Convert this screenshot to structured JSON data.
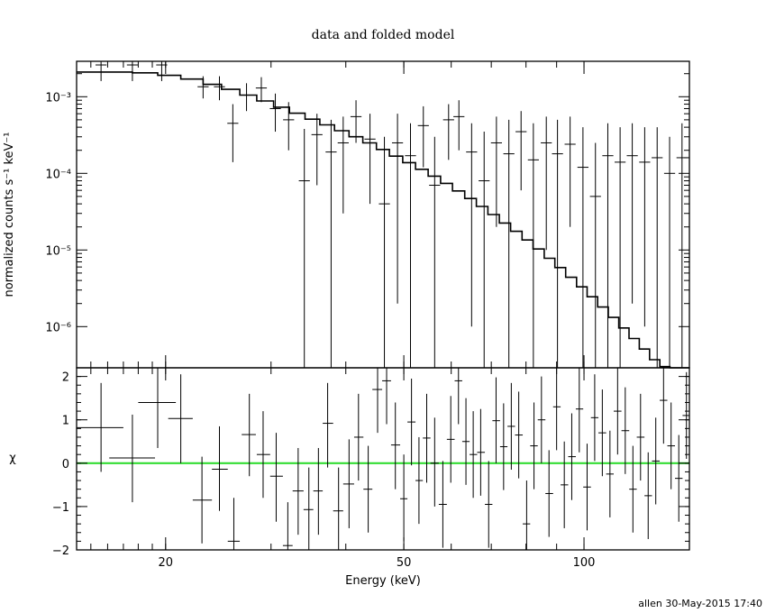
{
  "footer": "allen 30-May-2015 17:40",
  "colors": {
    "axes": "#000000",
    "zero_line": "#33dd33",
    "background": "#ffffff"
  },
  "chart_data": [
    {
      "type": "scatter",
      "panel": "top",
      "title": "data and folded model",
      "xlabel": "",
      "ylabel": "normalized counts s⁻¹ keV⁻¹",
      "xscale": "log",
      "yscale": "log",
      "xlim": [
        14.2,
        150
      ],
      "ylim": [
        2.9e-07,
        0.0029
      ],
      "yticks": [
        1e-06,
        1e-05,
        0.0001,
        0.001
      ],
      "ytick_labels": [
        "10⁻⁶",
        "10⁻⁵",
        "10⁻⁴",
        "10⁻³"
      ],
      "grid": false,
      "series": [
        {
          "kind": "data_with_errors",
          "points": [
            [
              15.6,
              0.0026,
              0.0016,
              0.0036
            ],
            [
              17.6,
              0.0026,
              0.0016,
              0.0036
            ],
            [
              19.7,
              0.0026,
              0.0016,
              0.0036
            ],
            [
              23.1,
              0.00135,
              0.00095,
              0.00185
            ],
            [
              24.6,
              0.00135,
              0.0009,
              0.00185
            ],
            [
              25.9,
              0.00045,
              0.00014,
              0.0008
            ],
            [
              27.3,
              0.00105,
              0.00065,
              0.0015
            ],
            [
              28.9,
              0.0013,
              0.00085,
              0.0018
            ],
            [
              30.5,
              0.0007,
              0.00035,
              0.0011
            ],
            [
              32.1,
              0.0005,
              0.0002,
              0.00085
            ],
            [
              34.1,
              8e-05,
              2.9e-07,
              0.00038
            ],
            [
              35.8,
              0.00032,
              7e-05,
              0.0006
            ],
            [
              37.8,
              0.00019,
              2.9e-07,
              0.0005
            ],
            [
              39.6,
              0.00025,
              3e-05,
              0.00055
            ],
            [
              41.6,
              0.00055,
              0.00025,
              0.0009
            ],
            [
              43.9,
              0.00028,
              4e-05,
              0.0006
            ],
            [
              46.4,
              4e-05,
              2.9e-07,
              0.0003
            ],
            [
              48.8,
              0.00025,
              2e-06,
              0.0006
            ],
            [
              51.3,
              0.00017,
              2.9e-07,
              0.00045
            ],
            [
              53.9,
              0.00042,
              0.00012,
              0.00075
            ],
            [
              56.3,
              7e-05,
              2.9e-07,
              0.0003
            ],
            [
              59.4,
              0.0005,
              0.00015,
              0.0008
            ],
            [
              61.8,
              0.00055,
              0.0002,
              0.0009
            ],
            [
              64.9,
              0.00019,
              1e-06,
              0.00045
            ],
            [
              68.1,
              8e-05,
              2.9e-07,
              0.00035
            ],
            [
              71.4,
              0.00025,
              2e-05,
              0.00055
            ],
            [
              74.9,
              0.00018,
              2.9e-07,
              0.0005
            ],
            [
              78.5,
              0.00035,
              6e-05,
              0.00065
            ],
            [
              82.3,
              0.00015,
              2.9e-07,
              0.00045
            ],
            [
              86.5,
              0.00025,
              1e-05,
              0.00055
            ],
            [
              90.3,
              0.00018,
              2.9e-07,
              0.0005
            ],
            [
              94.8,
              0.00024,
              2e-05,
              0.00055
            ],
            [
              99.6,
              0.00012,
              2.9e-07,
              0.0004
            ],
            [
              104.5,
              5e-05,
              2.9e-07,
              0.00025
            ],
            [
              109.6,
              0.00017,
              2.9e-07,
              0.00045
            ],
            [
              114.9,
              0.00014,
              2.9e-07,
              0.0004
            ],
            [
              120.4,
              0.00017,
              2e-06,
              0.00045
            ],
            [
              126.3,
              0.00014,
              1e-06,
              0.0004
            ],
            [
              132.5,
              0.00016,
              2.9e-07,
              0.0004
            ],
            [
              139.0,
              0.0001,
              2.9e-07,
              0.0003
            ],
            [
              145.8,
              0.00016,
              2.9e-07,
              0.00045
            ],
            [
              150.0,
              0.00016,
              1e-05,
              0.0004
            ]
          ]
        },
        {
          "kind": "model_histogram",
          "x": [
            14.2,
            15.8,
            17.6,
            19.4,
            21.2,
            23.1,
            24.8,
            26.6,
            28.4,
            30.3,
            32.2,
            34.2,
            36.2,
            38.3,
            40.5,
            42.7,
            45.0,
            47.3,
            49.8,
            52.3,
            54.9,
            57.6,
            60.3,
            63.2,
            66.1,
            69.1,
            72.2,
            75.4,
            78.8,
            82.2,
            85.8,
            89.4,
            93.2,
            97.2,
            101.2,
            105.4,
            109.8,
            114.3,
            118.9,
            123.7,
            128.7,
            133.9,
            139.2,
            144.7,
            150.0
          ],
          "y": [
            0.0021,
            0.0021,
            0.00205,
            0.0019,
            0.0017,
            0.00145,
            0.00125,
            0.00105,
            0.00088,
            0.00073,
            0.00061,
            0.00051,
            0.00043,
            0.00036,
            0.0003,
            0.00025,
            0.000205,
            0.000168,
            0.000138,
            0.000113,
            9.2e-05,
            7.4e-05,
            5.9e-05,
            4.7e-05,
            3.7e-05,
            2.9e-05,
            2.25e-05,
            1.75e-05,
            1.35e-05,
            1.03e-05,
            7.8e-06,
            5.9e-06,
            4.4e-06,
            3.3e-06,
            2.45e-06,
            1.8e-06,
            1.32e-06,
            9.6e-07,
            7e-07,
            5.1e-07,
            3.7e-07,
            3e-07,
            2.9e-07,
            2.9e-07
          ]
        }
      ]
    },
    {
      "type": "scatter",
      "panel": "bottom",
      "xlabel": "Energy (keV)",
      "ylabel": "χ",
      "xscale": "log",
      "yscale": "linear",
      "xlim": [
        14.2,
        150
      ],
      "ylim": [
        -2,
        2.2
      ],
      "xticks": [
        20,
        50,
        100
      ],
      "xtick_labels": [
        "20",
        "50",
        "100"
      ],
      "yticks": [
        -2,
        -1,
        0,
        1,
        2
      ],
      "ytick_labels": [
        "−2",
        "−1",
        "0",
        "1",
        "2"
      ],
      "zero_line": 0,
      "residuals": [
        [
          15.6,
          0.82,
          -0.2,
          1.85,
          14.2,
          17.0
        ],
        [
          17.6,
          0.12,
          -0.9,
          1.12,
          16.1,
          19.2
        ],
        [
          19.4,
          1.4,
          0.35,
          2.2,
          18.0,
          20.8
        ],
        [
          21.2,
          1.03,
          0.0,
          2.05,
          20.2,
          22.2
        ],
        [
          23.0,
          -0.85,
          -1.85,
          0.15,
          22.2,
          23.9
        ],
        [
          24.6,
          -0.14,
          -1.1,
          0.85,
          23.9,
          25.4
        ],
        [
          26.0,
          -1.8,
          -2.0,
          -0.8,
          25.4,
          26.6
        ],
        [
          27.6,
          0.66,
          -0.3,
          1.6,
          26.8,
          28.3
        ],
        [
          29.1,
          0.2,
          -0.8,
          1.2,
          28.4,
          29.9
        ],
        [
          30.6,
          -0.3,
          -1.35,
          0.7,
          29.9,
          31.4
        ],
        [
          32.0,
          -1.9,
          -2.0,
          -0.9,
          31.4,
          32.6
        ],
        [
          33.3,
          -0.64,
          -1.65,
          0.35,
          32.6,
          34.0
        ],
        [
          34.7,
          -1.07,
          -2.0,
          -0.1,
          34.0,
          35.3
        ],
        [
          36.0,
          -0.64,
          -1.65,
          0.35,
          35.3,
          36.6
        ],
        [
          37.3,
          0.92,
          -0.1,
          1.85,
          36.6,
          38.1
        ],
        [
          38.9,
          -1.1,
          -2.0,
          -0.1,
          38.1,
          39.6
        ],
        [
          40.5,
          -0.48,
          -1.5,
          0.55,
          39.6,
          41.3
        ],
        [
          42.0,
          0.6,
          -0.4,
          1.6,
          41.3,
          42.8
        ],
        [
          43.6,
          -0.6,
          -1.6,
          0.4,
          42.8,
          44.3
        ],
        [
          45.2,
          1.7,
          0.7,
          2.2,
          44.3,
          46.0
        ],
        [
          46.8,
          1.9,
          0.9,
          2.2,
          46.0,
          47.6
        ],
        [
          48.4,
          0.42,
          -0.6,
          1.4,
          47.6,
          49.3
        ],
        [
          50.0,
          -0.82,
          -1.8,
          0.2,
          49.3,
          50.7
        ],
        [
          51.5,
          0.95,
          -0.05,
          1.95,
          50.7,
          52.3
        ],
        [
          53.0,
          -0.4,
          -1.4,
          0.6,
          52.3,
          53.8
        ],
        [
          54.6,
          0.58,
          -0.45,
          1.6,
          53.8,
          55.4
        ],
        [
          56.3,
          0.0,
          -1.0,
          1.05,
          55.4,
          57.2
        ],
        [
          58.1,
          -0.95,
          -1.95,
          0.05,
          57.2,
          59.0
        ],
        [
          59.9,
          0.55,
          -0.45,
          1.55,
          59.0,
          60.8
        ],
        [
          61.7,
          1.9,
          0.9,
          2.2,
          60.8,
          62.6
        ],
        [
          63.5,
          0.5,
          -0.5,
          1.5,
          62.6,
          64.4
        ],
        [
          65.3,
          0.2,
          -0.8,
          1.2,
          64.4,
          66.3
        ],
        [
          67.2,
          0.25,
          -0.75,
          1.25,
          66.3,
          68.3
        ],
        [
          69.3,
          -0.95,
          -1.95,
          0.05,
          68.3,
          70.3
        ],
        [
          71.3,
          0.98,
          0.0,
          1.98,
          70.3,
          72.4
        ],
        [
          73.4,
          0.38,
          -0.62,
          1.38,
          72.4,
          74.5
        ],
        [
          75.6,
          0.85,
          -0.15,
          1.85,
          74.5,
          76.7
        ],
        [
          77.8,
          0.65,
          -0.35,
          1.65,
          76.7,
          79.0
        ],
        [
          80.2,
          -1.4,
          -2.0,
          -0.4,
          79.0,
          81.3
        ],
        [
          82.5,
          0.4,
          -0.6,
          1.4,
          81.3,
          83.7
        ],
        [
          84.9,
          1.0,
          0.0,
          2.0,
          83.7,
          86.2
        ],
        [
          87.4,
          -0.7,
          -1.7,
          0.3,
          86.2,
          88.8
        ],
        [
          90.0,
          1.3,
          0.3,
          2.2,
          88.8,
          91.4
        ],
        [
          92.7,
          -0.5,
          -1.5,
          0.5,
          91.4,
          94.1
        ],
        [
          95.4,
          0.15,
          -0.85,
          1.15,
          94.1,
          96.9
        ],
        [
          98.2,
          1.25,
          0.25,
          2.2,
          96.9,
          99.7
        ],
        [
          101.2,
          -0.55,
          -1.55,
          0.45,
          99.7,
          102.7
        ],
        [
          104.2,
          1.05,
          0.05,
          2.05,
          102.7,
          105.7
        ],
        [
          107.3,
          0.7,
          -0.3,
          1.7,
          105.7,
          108.9
        ],
        [
          110.5,
          -0.25,
          -1.25,
          0.75,
          108.9,
          112.1
        ],
        [
          113.8,
          1.2,
          0.2,
          2.2,
          112.1,
          115.5
        ],
        [
          117.2,
          0.75,
          -0.25,
          1.75,
          115.5,
          119.0
        ],
        [
          120.7,
          -0.6,
          -1.6,
          0.4,
          119.0,
          122.5
        ],
        [
          124.3,
          0.6,
          -0.4,
          1.6,
          122.5,
          126.2
        ],
        [
          128.0,
          -0.75,
          -1.75,
          0.25,
          126.2,
          129.9
        ],
        [
          131.8,
          0.05,
          -0.95,
          1.05,
          129.9,
          133.8
        ],
        [
          135.8,
          1.45,
          0.45,
          2.2,
          133.8,
          137.8
        ],
        [
          139.8,
          0.4,
          -0.6,
          1.4,
          137.8,
          141.9
        ],
        [
          144.0,
          -0.35,
          -1.35,
          0.65,
          141.9,
          146.1
        ],
        [
          148.3,
          1.1,
          0.1,
          2.1,
          146.1,
          150.0
        ]
      ]
    }
  ]
}
